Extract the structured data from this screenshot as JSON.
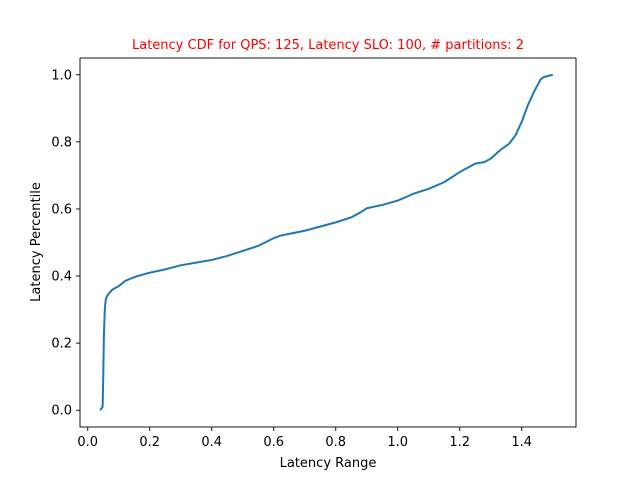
{
  "chart_data": {
    "type": "line",
    "title": "Latency CDF for QPS: 125, Latency SLO: 100, # partitions: 2",
    "xlabel": "Latency Range",
    "ylabel": "Latency Percentile",
    "xlim": [
      -0.025,
      1.575
    ],
    "ylim": [
      -0.05,
      1.05
    ],
    "xticks": [
      0.0,
      0.2,
      0.4,
      0.6,
      0.8,
      1.0,
      1.2,
      1.4
    ],
    "xtick_labels": [
      "0.0",
      "0.2",
      "0.4",
      "0.6",
      "0.8",
      "1.0",
      "1.2",
      "1.4"
    ],
    "yticks": [
      0.0,
      0.2,
      0.4,
      0.6,
      0.8,
      1.0
    ],
    "ytick_labels": [
      "0.0",
      "0.2",
      "0.4",
      "0.6",
      "0.8",
      "1.0"
    ],
    "grid": false,
    "colors": {
      "title": "#ff0000",
      "line": "#1f77b4",
      "axes": "#000000"
    },
    "series": [
      {
        "name": "Latency CDF",
        "x": [
          0.04,
          0.048,
          0.05,
          0.052,
          0.055,
          0.058,
          0.062,
          0.07,
          0.08,
          0.1,
          0.12,
          0.14,
          0.16,
          0.2,
          0.25,
          0.3,
          0.35,
          0.4,
          0.45,
          0.5,
          0.55,
          0.6,
          0.62,
          0.7,
          0.8,
          0.85,
          0.88,
          0.9,
          0.95,
          1.0,
          1.05,
          1.1,
          1.15,
          1.2,
          1.25,
          1.28,
          1.3,
          1.33,
          1.36,
          1.38,
          1.39,
          1.4,
          1.42,
          1.44,
          1.46,
          1.47,
          1.5
        ],
        "y": [
          0.0,
          0.01,
          0.1,
          0.22,
          0.3,
          0.33,
          0.34,
          0.35,
          0.36,
          0.37,
          0.385,
          0.393,
          0.4,
          0.41,
          0.42,
          0.432,
          0.44,
          0.448,
          0.46,
          0.475,
          0.49,
          0.513,
          0.52,
          0.535,
          0.56,
          0.575,
          0.59,
          0.602,
          0.612,
          0.625,
          0.645,
          0.66,
          0.68,
          0.71,
          0.735,
          0.74,
          0.75,
          0.775,
          0.795,
          0.82,
          0.84,
          0.86,
          0.91,
          0.95,
          0.985,
          0.993,
          1.0
        ]
      }
    ]
  }
}
